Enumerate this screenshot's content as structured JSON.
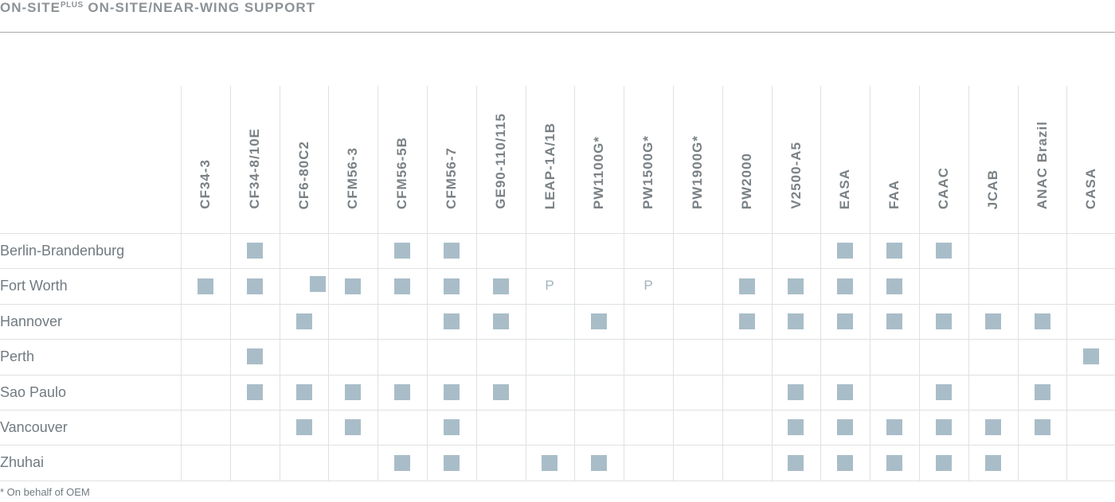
{
  "header": {
    "title_a": "ON-SITE",
    "title_sup": "PLUS",
    "title_b": " ON-SITE/NEAR-WING SUPPORT"
  },
  "columns": [
    "CF34-3",
    "CF34-8/10E",
    "CF6-80C2",
    "CFM56-3",
    "CFM56-5B",
    "CFM56-7",
    "GE90-110/115",
    "LEAP-1A/1B",
    "PW1100G*",
    "PW1500G*",
    "PW1900G*",
    "PW2000",
    "V2500-A5",
    "EASA",
    "FAA",
    "CAAC",
    "JCAB",
    "ANAC Brazil",
    "CASA"
  ],
  "rows": [
    {
      "label": "Berlin-Brandenburg",
      "cells": [
        "",
        "X",
        "",
        "",
        "X",
        "X",
        "",
        "",
        "",
        "",
        "",
        "",
        "",
        "X",
        "X",
        "X",
        "",
        "",
        ""
      ]
    },
    {
      "label": "Fort Worth",
      "cells": [
        "X",
        "X",
        "X",
        "X",
        "X",
        "X",
        "X",
        "P",
        "",
        "P",
        "",
        "X",
        "X",
        "X",
        "X",
        "",
        "",
        "",
        ""
      ]
    },
    {
      "label": "Hannover",
      "cells": [
        "",
        "",
        "X",
        "",
        "",
        "X",
        "X",
        "",
        "X",
        "",
        "",
        "X",
        "X",
        "X",
        "X",
        "X",
        "X",
        "X",
        ""
      ]
    },
    {
      "label": "Perth",
      "cells": [
        "",
        "X",
        "",
        "",
        "",
        "",
        "",
        "",
        "",
        "",
        "",
        "",
        "",
        "",
        "",
        "",
        "",
        "",
        "X"
      ]
    },
    {
      "label": "Sao Paulo",
      "cells": [
        "",
        "X",
        "X",
        "X",
        "X",
        "X",
        "X",
        "",
        "",
        "",
        "",
        "",
        "X",
        "X",
        "",
        "X",
        "",
        "X",
        ""
      ]
    },
    {
      "label": "Vancouver",
      "cells": [
        "",
        "",
        "X",
        "X",
        "",
        "X",
        "",
        "",
        "",
        "",
        "",
        "",
        "X",
        "X",
        "X",
        "X",
        "X",
        "X",
        ""
      ]
    },
    {
      "label": "Zhuhai",
      "cells": [
        "",
        "",
        "",
        "",
        "X",
        "X",
        "",
        "X",
        "X",
        "",
        "",
        "",
        "X",
        "X",
        "X",
        "X",
        "X",
        "",
        ""
      ]
    }
  ],
  "legend": {
    "planned_marker": "P"
  },
  "footnote": "* On behalf of OEM",
  "colors": {
    "marker": "#a9bdc8",
    "grid": "#dee1e3",
    "text": "#707a80"
  }
}
